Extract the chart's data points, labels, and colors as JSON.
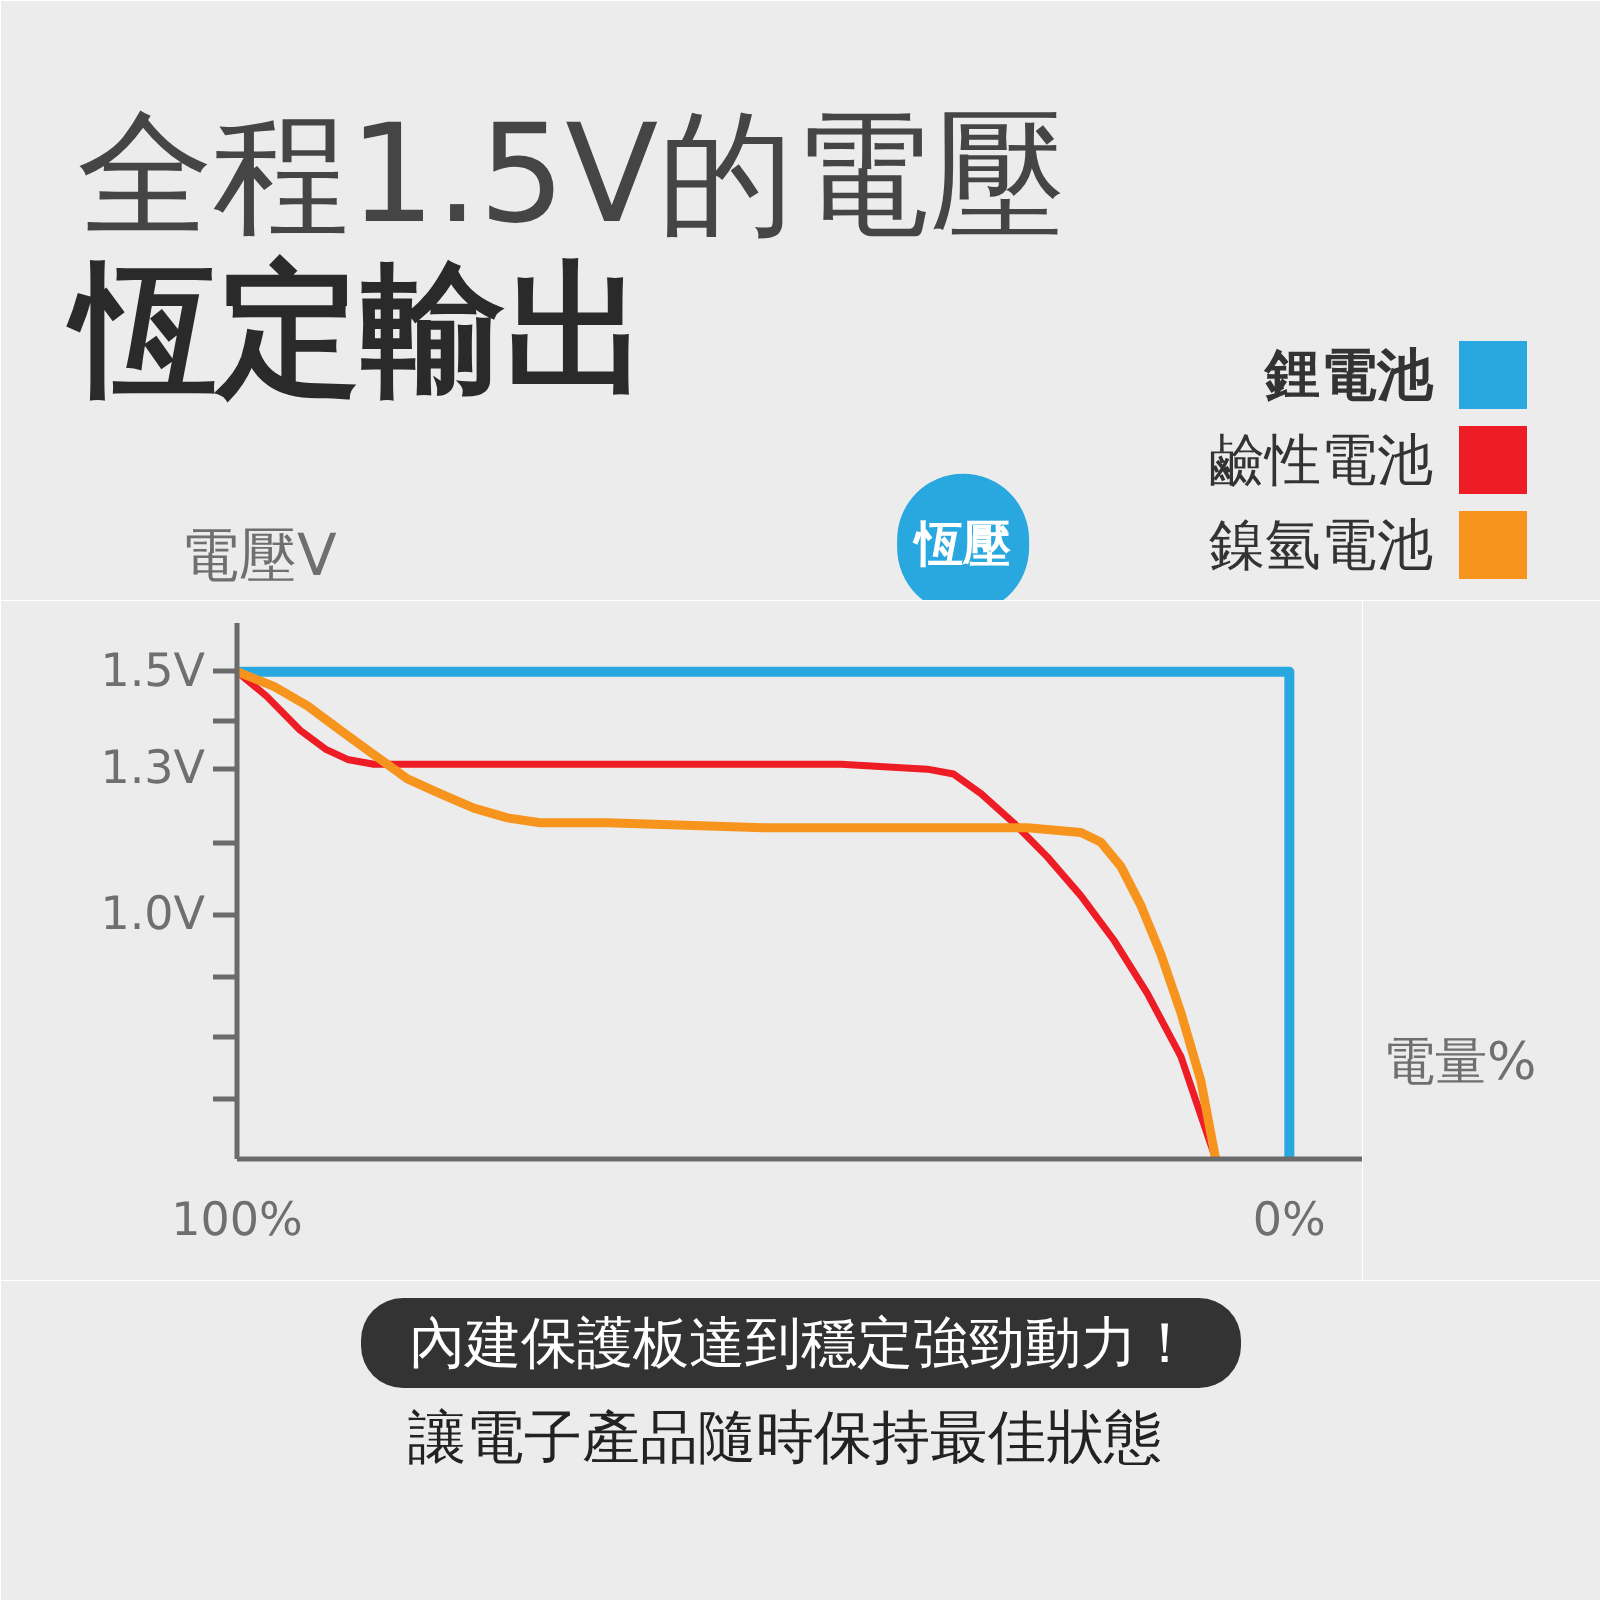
{
  "chart_data": {
    "type": "line",
    "title": "全程1.5V的電壓",
    "subtitle": "恆定輸出",
    "xlabel": "電量%",
    "ylabel": "電壓V",
    "xlim": [
      100,
      -7
    ],
    "xticks": [
      {
        "value": 100,
        "label": "100%"
      },
      {
        "value": 0,
        "label": "0%"
      }
    ],
    "ylim": [
      0.5,
      1.6
    ],
    "yticks": [
      {
        "value": 1.5,
        "label": "1.5V"
      },
      {
        "value": 1.4,
        "label": null
      },
      {
        "value": 1.3,
        "label": "1.3V"
      },
      {
        "value": 1.15,
        "label": null
      },
      {
        "value": 1.0,
        "label": "1.0V"
      },
      {
        "value": 0.875,
        "label": null
      },
      {
        "value": 0.75,
        "label": null
      },
      {
        "value": 0.625,
        "label": null
      }
    ],
    "legend": "top right",
    "series": [
      {
        "name": "鋰電池",
        "color": "#29a8e0",
        "x": [
          100,
          0,
          0
        ],
        "values": [
          1.5,
          1.5,
          0.5
        ]
      },
      {
        "name": "鹼性電池",
        "color": "#ee1c24",
        "x": [
          100,
          97.2,
          94,
          91.5,
          89.5,
          87,
          70,
          55,
          42.6,
          34.4,
          31.9,
          29.3,
          26.2,
          23,
          19.8,
          16.7,
          13.5,
          10.3,
          7
        ],
        "values": [
          1.5,
          1.45,
          1.38,
          1.34,
          1.32,
          1.31,
          1.31,
          1.31,
          1.31,
          1.3,
          1.29,
          1.25,
          1.19,
          1.12,
          1.04,
          0.95,
          0.84,
          0.71,
          0.5
        ]
      },
      {
        "name": "鎳氫電池",
        "color": "#f7941d",
        "x": [
          100,
          96.5,
          93.3,
          90.2,
          87,
          83.8,
          80.7,
          77.5,
          74.3,
          71.2,
          64.8,
          50,
          35,
          24.9,
          19.8,
          17.9,
          16,
          14.1,
          12.2,
          10.3,
          8.4,
          7
        ],
        "values": [
          1.5,
          1.47,
          1.43,
          1.38,
          1.33,
          1.28,
          1.25,
          1.22,
          1.2,
          1.19,
          1.19,
          1.18,
          1.18,
          1.18,
          1.17,
          1.15,
          1.1,
          1.02,
          0.92,
          0.8,
          0.66,
          0.5
        ]
      }
    ],
    "annotations": [
      {
        "text": "恆壓",
        "x": 31,
        "y": 1.5
      },
      "內建保護板達到穩定強勁動力！",
      "讓電子產品隨時保持最佳狀態"
    ]
  }
}
